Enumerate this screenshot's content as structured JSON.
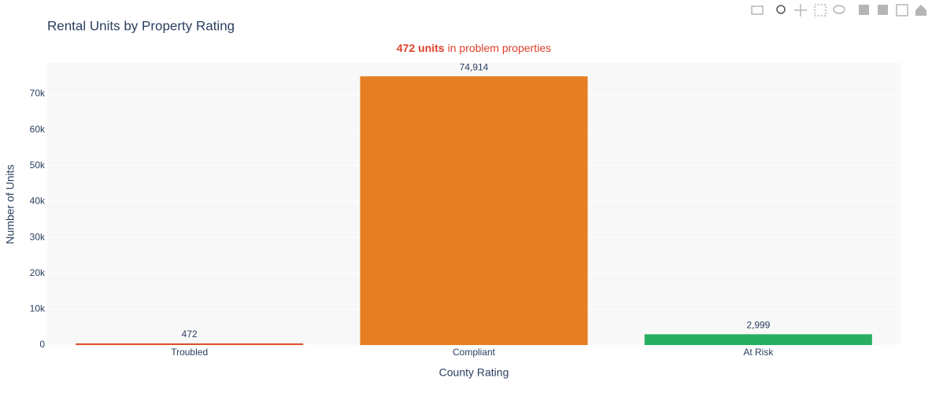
{
  "chart_data": {
    "type": "bar",
    "title": "Rental Units by Property Rating",
    "annotation": {
      "bold": "472 units",
      "text": "in problem properties"
    },
    "categories": [
      "Troubled",
      "Compliant",
      "At Risk"
    ],
    "values": [
      472,
      74914,
      2999
    ],
    "value_labels": [
      "472",
      "74,914",
      "2,999"
    ],
    "colors": [
      "#e0522f",
      "#e67e22",
      "#27ae60"
    ],
    "xlabel": "County Rating",
    "ylabel": "Number of Units",
    "ylim": [
      0,
      78660
    ],
    "yticks": [
      0,
      {
        "value": 10000,
        "label": "10k"
      },
      {
        "value": 20000,
        "label": "20k"
      },
      {
        "value": 30000,
        "label": "30k"
      },
      {
        "value": 40000,
        "label": "40k"
      },
      {
        "value": 50000,
        "label": "50k"
      },
      {
        "value": 60000,
        "label": "60k"
      },
      {
        "value": 70000,
        "label": "70k"
      }
    ],
    "grid": true
  }
}
